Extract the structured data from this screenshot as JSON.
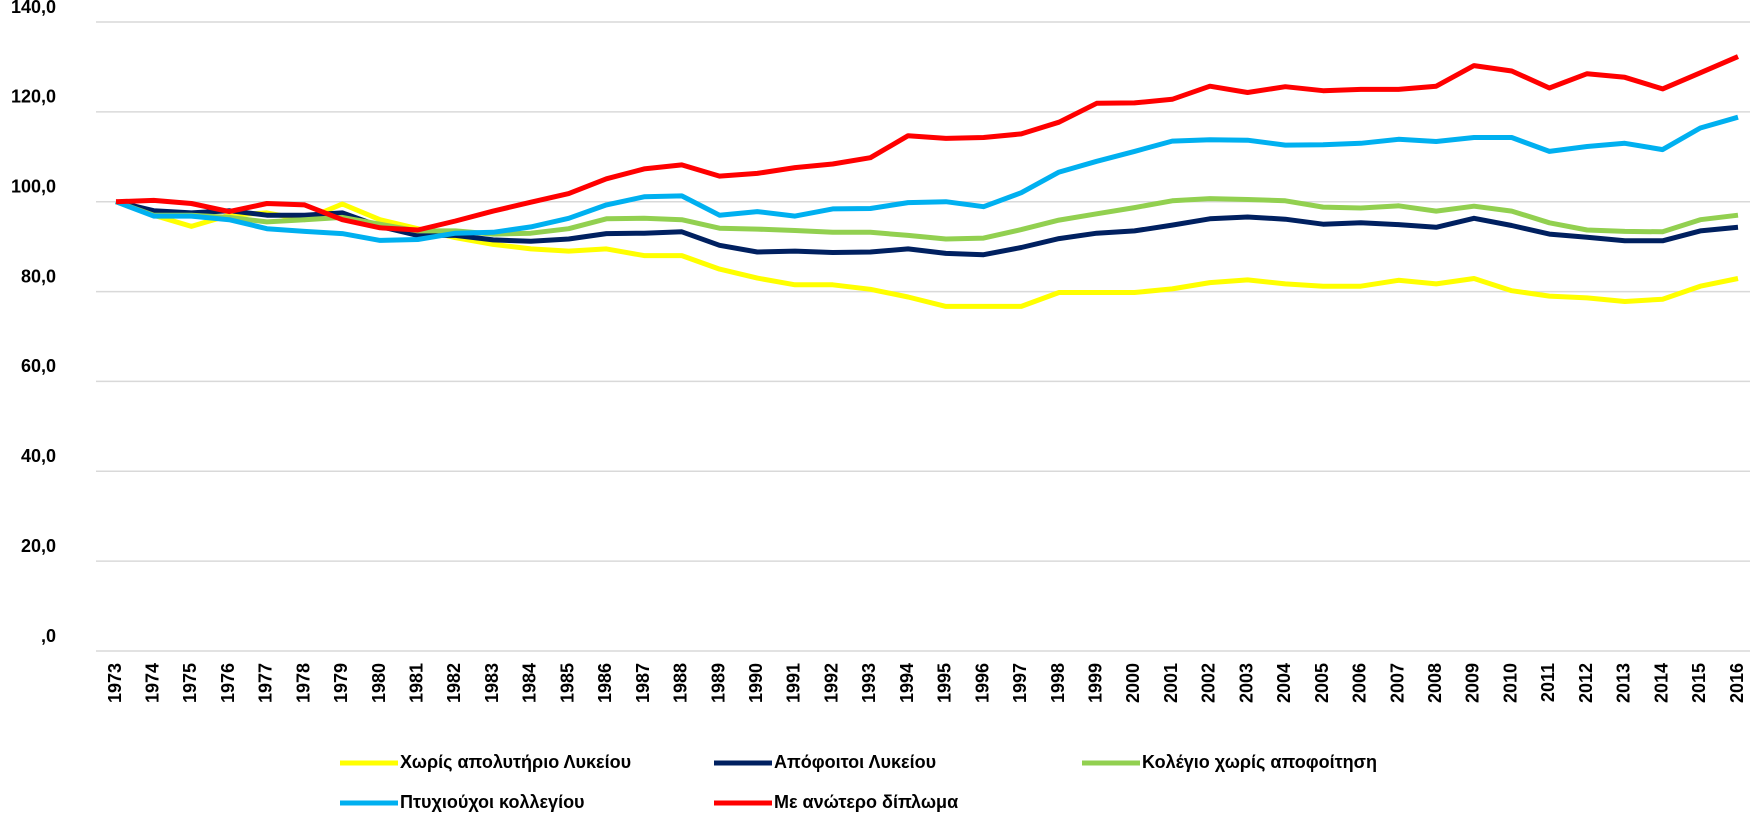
{
  "chart_data": {
    "type": "line",
    "x": [
      "1973",
      "1974",
      "1975",
      "1976",
      "1977",
      "1978",
      "1979",
      "1980",
      "1981",
      "1982",
      "1983",
      "1984",
      "1985",
      "1986",
      "1987",
      "1988",
      "1989",
      "1990",
      "1991",
      "1992",
      "1993",
      "1994",
      "1995",
      "1996",
      "1997",
      "1998",
      "1999",
      "2000",
      "2001",
      "2002",
      "2003",
      "2004",
      "2005",
      "2006",
      "2007",
      "2008",
      "2009",
      "2010",
      "2011",
      "2012",
      "2013",
      "2014",
      "2015",
      "2016"
    ],
    "ylim": [
      0,
      140
    ],
    "yticks": [
      {
        "value": 0,
        "label": ",0"
      },
      {
        "value": 20,
        "label": "20,0"
      },
      {
        "value": 40,
        "label": "40,0"
      },
      {
        "value": 60,
        "label": "60,0"
      },
      {
        "value": 80,
        "label": "80,0"
      },
      {
        "value": 100,
        "label": "100,0"
      },
      {
        "value": 120,
        "label": "120,0"
      },
      {
        "value": 140,
        "label": "140,0"
      }
    ],
    "grid": true,
    "series": [
      {
        "name": "Χωρίς απολυτήριο Λυκείου",
        "color": "#ffff00",
        "values": [
          100,
          97,
          94.5,
          97,
          97.5,
          96,
          99.5,
          96,
          94,
          92,
          90.5,
          89.5,
          89,
          89.5,
          88,
          88,
          85,
          83,
          81.5,
          81.5,
          80.5,
          78.8,
          76.7,
          76.7,
          76.7,
          79.8,
          79.8,
          79.8,
          80.6,
          82,
          82.6,
          81.7,
          81.2,
          81.2,
          82.5,
          81.7,
          82.9,
          80.2,
          79,
          78.6,
          77.8,
          78.3,
          81.2,
          82.9
        ]
      },
      {
        "name": "Απόφοιτοι Λυκείου",
        "color": "#002060",
        "values": [
          100,
          98,
          97.5,
          98,
          97,
          97,
          97.5,
          94.5,
          92.5,
          92.5,
          91.5,
          91.2,
          91.7,
          92.9,
          93,
          93.3,
          90.3,
          88.8,
          89,
          88.7,
          88.8,
          89.5,
          88.5,
          88.2,
          89.8,
          91.8,
          93,
          93.5,
          94.8,
          96.2,
          96.6,
          96.1,
          95,
          95.3,
          94.9,
          94.3,
          96.3,
          94.7,
          92.8,
          92.1,
          91.3,
          91.3,
          93.5,
          94.3
        ]
      },
      {
        "name": "Κολέγιο χωρίς αποφοίτηση",
        "color": "#92d050",
        "values": [
          100,
          97,
          97,
          96.5,
          95.5,
          96,
          96.5,
          95,
          93.5,
          93.5,
          92.8,
          93,
          94,
          96.2,
          96.3,
          96,
          94.1,
          93.9,
          93.6,
          93.2,
          93.2,
          92.5,
          91.7,
          91.9,
          93.8,
          95.9,
          97.3,
          98.7,
          100.2,
          100.7,
          100.5,
          100.2,
          98.8,
          98.6,
          99.1,
          97.9,
          99,
          97.9,
          95.3,
          93.7,
          93.4,
          93.3,
          96,
          97
        ]
      },
      {
        "name": "Πτυχιούχοι κολλεγίου",
        "color": "#00b0f0",
        "values": [
          100,
          96.8,
          96.8,
          96,
          94,
          93.4,
          92.9,
          91.4,
          91.6,
          93,
          93.2,
          94.4,
          96.3,
          99.3,
          101.1,
          101.3,
          97,
          97.8,
          96.8,
          98.4,
          98.5,
          99.8,
          100,
          98.9,
          102,
          106.6,
          109,
          111.2,
          113.5,
          113.8,
          113.7,
          112.6,
          112.7,
          113,
          113.9,
          113.4,
          114.3,
          114.3,
          111.2,
          112.3,
          113,
          111.6,
          116.4,
          118.8
        ]
      },
      {
        "name": "Με ανώτερο δίπλωμα",
        "color": "#ff0000",
        "values": [
          100,
          100.3,
          99.6,
          97.8,
          99.6,
          99.3,
          96,
          94.2,
          93.7,
          95.7,
          97.9,
          99.9,
          101.8,
          105.1,
          107.3,
          108.2,
          105.7,
          106.3,
          107.6,
          108.4,
          109.8,
          114.7,
          114.1,
          114.3,
          115.1,
          117.7,
          121.9,
          122,
          122.8,
          125.7,
          124.3,
          125.6,
          124.7,
          125,
          125,
          125.7,
          130.3,
          129.1,
          125.3,
          128.5,
          127.7,
          125.1,
          128.7,
          132.3
        ]
      }
    ]
  }
}
